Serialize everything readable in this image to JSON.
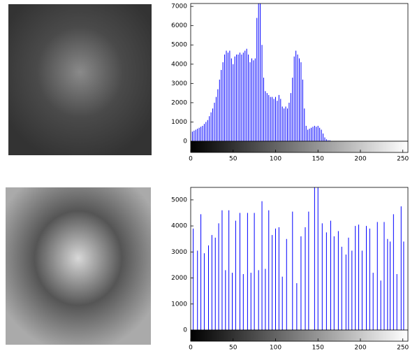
{
  "chart_data": [
    {
      "type": "bar",
      "color": "#0000ff",
      "x": [
        0,
        2,
        4,
        6,
        8,
        10,
        12,
        14,
        16,
        18,
        20,
        22,
        24,
        26,
        28,
        30,
        32,
        34,
        36,
        38,
        40,
        42,
        44,
        46,
        48,
        50,
        52,
        54,
        56,
        58,
        60,
        62,
        64,
        66,
        68,
        70,
        72,
        74,
        76,
        78,
        80,
        82,
        84,
        86,
        88,
        90,
        92,
        94,
        96,
        98,
        100,
        102,
        104,
        106,
        108,
        110,
        112,
        114,
        116,
        118,
        120,
        122,
        124,
        126,
        128,
        130,
        132,
        134,
        136,
        138,
        140,
        142,
        144,
        146,
        148,
        150,
        152,
        154,
        156,
        158,
        160,
        162,
        164,
        166
      ],
      "values": [
        500,
        500,
        550,
        600,
        650,
        700,
        750,
        800,
        900,
        1000,
        1100,
        1300,
        1500,
        1700,
        2000,
        2300,
        2700,
        3200,
        3700,
        4100,
        4500,
        4700,
        4600,
        4700,
        4300,
        4000,
        4400,
        4500,
        4500,
        4600,
        4500,
        4600,
        4700,
        4800,
        4500,
        4100,
        4300,
        4200,
        4300,
        6400,
        7150,
        7150,
        5000,
        3300,
        2600,
        2500,
        2400,
        2300,
        2300,
        2200,
        2300,
        2100,
        2400,
        2200,
        1800,
        1700,
        1800,
        1700,
        2000,
        2500,
        3300,
        4400,
        4700,
        4500,
        4300,
        4100,
        3200,
        1700,
        800,
        600,
        650,
        700,
        750,
        800,
        750,
        800,
        700,
        600,
        400,
        200,
        100,
        50,
        50,
        0
      ],
      "xlim": [
        0,
        256
      ],
      "xticks": [
        0,
        50,
        100,
        150,
        200,
        250
      ],
      "ylim": [
        0,
        7150
      ],
      "yticks": [
        0,
        1000,
        2000,
        3000,
        4000,
        5000,
        6000,
        7000
      ]
    },
    {
      "type": "bar",
      "color": "#0000ff",
      "x": [
        3,
        8,
        12,
        16,
        21,
        25,
        29,
        33,
        37,
        41,
        45,
        49,
        53,
        58,
        62,
        67,
        71,
        75,
        80,
        84,
        88,
        92,
        96,
        100,
        104,
        108,
        113,
        120,
        125,
        130,
        135,
        139,
        146,
        150,
        155,
        160,
        165,
        169,
        174,
        178,
        183,
        186,
        190,
        194,
        198,
        202,
        207,
        211,
        215,
        220,
        224,
        228,
        232,
        235,
        239,
        243,
        248,
        251
      ],
      "values": [
        3900,
        3050,
        4450,
        2950,
        3250,
        3650,
        3550,
        4100,
        4600,
        2300,
        4600,
        2200,
        4200,
        4500,
        2150,
        4500,
        2200,
        4500,
        2300,
        4950,
        2350,
        4600,
        3650,
        3900,
        3950,
        2050,
        3500,
        4550,
        1800,
        3600,
        3950,
        4550,
        5780,
        5830,
        4100,
        3750,
        4200,
        3600,
        3800,
        3200,
        2900,
        3550,
        3050,
        4000,
        4050,
        3050,
        4000,
        3900,
        2200,
        4150,
        1900,
        4150,
        3500,
        3400,
        4450,
        2150,
        4750,
        3400
      ],
      "xlim": [
        0,
        256
      ],
      "xticks": [
        0,
        50,
        100,
        150,
        200,
        250
      ],
      "ylim": [
        0,
        5480
      ],
      "yticks": [
        0,
        1000,
        2000,
        3000,
        4000,
        5000
      ]
    }
  ]
}
